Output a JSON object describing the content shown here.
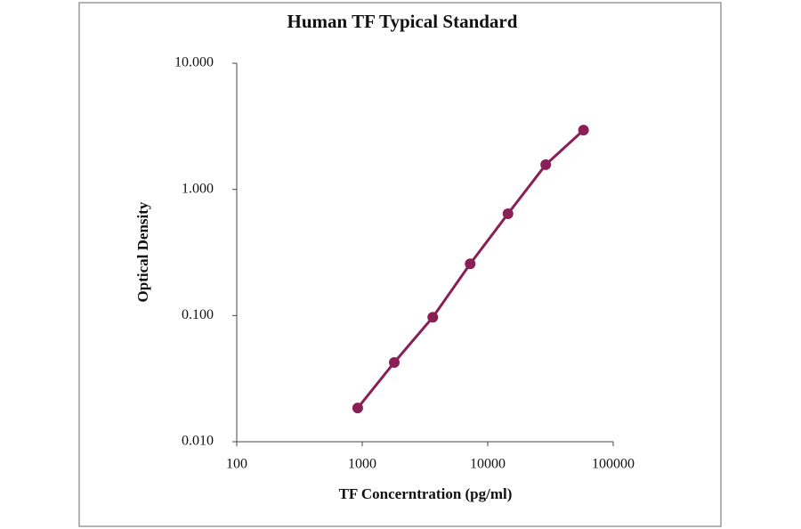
{
  "chart_data": {
    "type": "scatter",
    "title": "Human TF Typical Standard",
    "x_label": "TF Concerntration (pg/ml)",
    "y_label": "Optical Density",
    "x": [
      920,
      1800,
      3650,
      7250,
      14500,
      29000,
      58000
    ],
    "series": [
      {
        "color": "#8a1f55",
        "values": [
          0.0185,
          0.0425,
          0.097,
          0.257,
          0.641,
          1.57,
          2.95
        ]
      }
    ],
    "line": true,
    "xscale": "log",
    "yscale": "log",
    "xlim": [
      100,
      100000
    ],
    "ylim": [
      0.01,
      10
    ],
    "xticks": [
      100,
      1000,
      10000,
      100000
    ],
    "yticks": [
      {
        "value": 10,
        "label": "10.000"
      },
      {
        "value": 1,
        "label": "1.000"
      },
      {
        "value": 0.1,
        "label": "0.100"
      },
      {
        "value": 0.01,
        "label": "0.010"
      }
    ]
  }
}
